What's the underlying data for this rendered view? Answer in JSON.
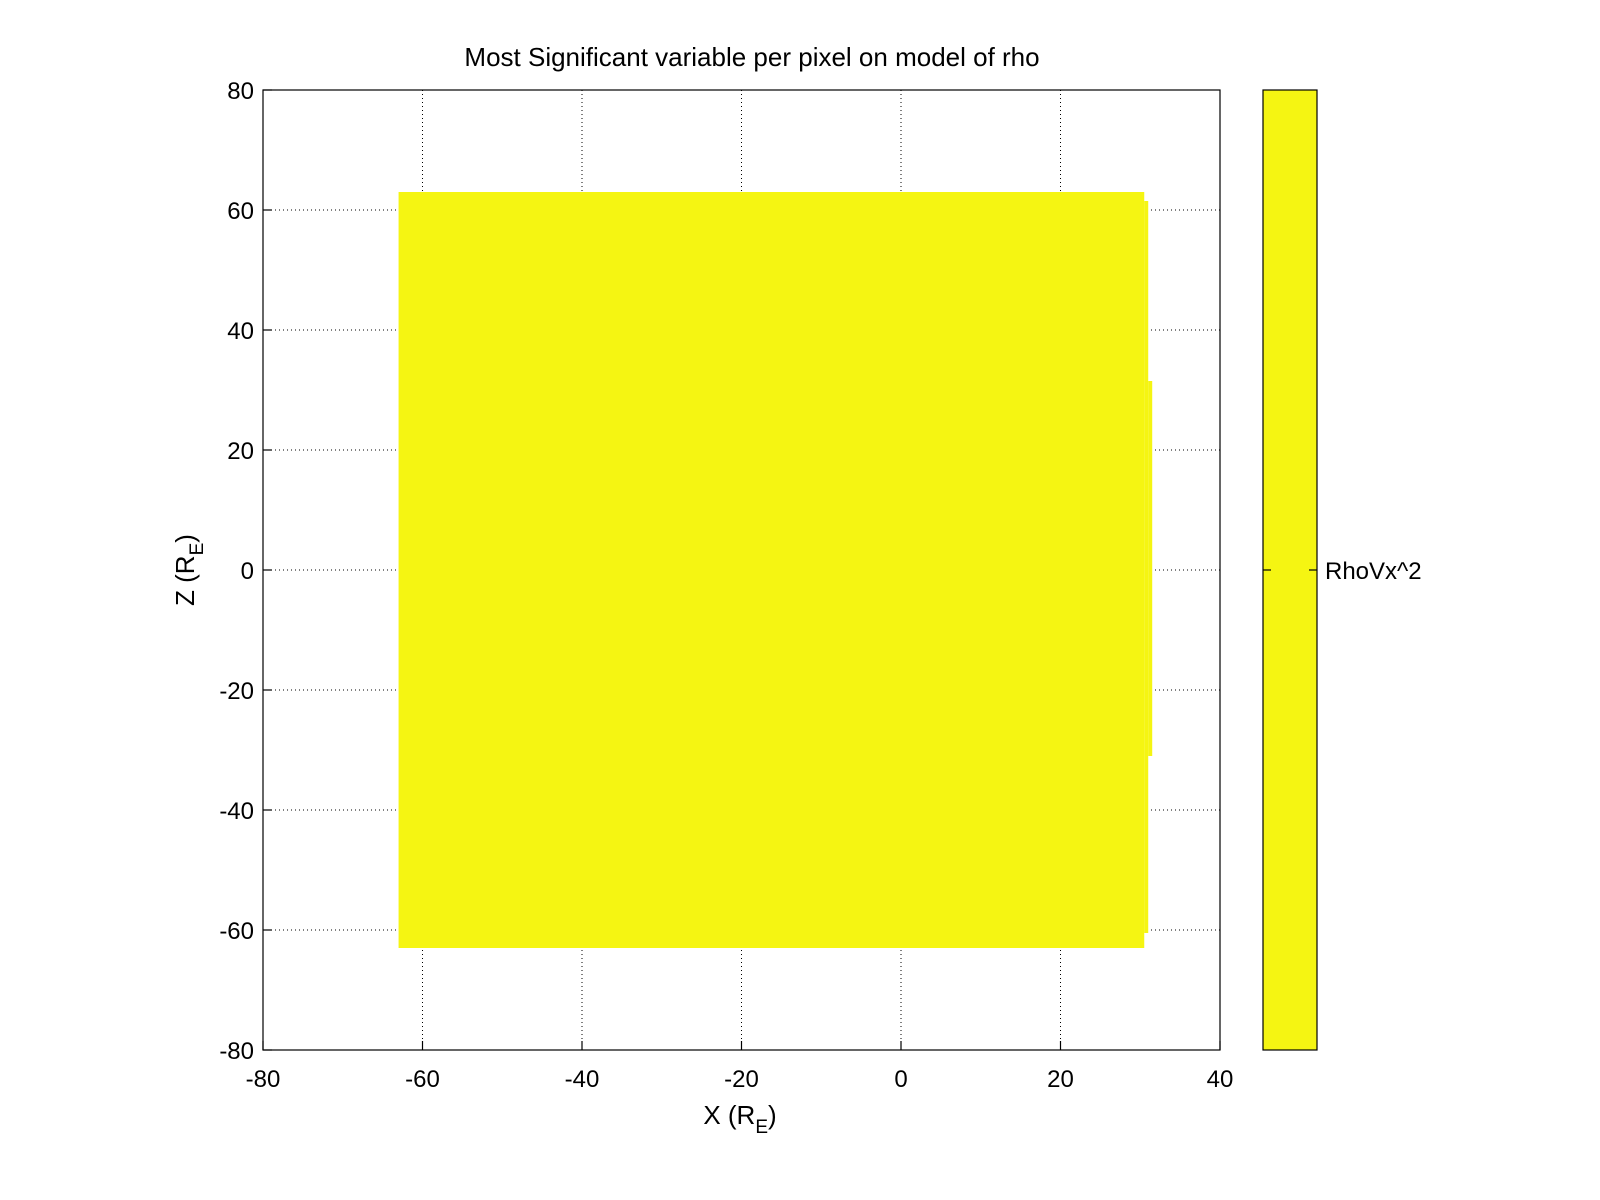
{
  "chart_data": {
    "type": "heatmap",
    "title": "Most Significant variable per pixel on model of rho",
    "xlabel": {
      "main": "X (R",
      "subscript": "E",
      "suffix": ")"
    },
    "ylabel": {
      "main": "Z (R",
      "subscript": "E",
      "suffix": ")"
    },
    "xlim": [
      -80,
      40
    ],
    "ylim": [
      -80,
      80
    ],
    "xticks": [
      -80,
      -60,
      -40,
      -20,
      0,
      20,
      40
    ],
    "yticks": [
      80,
      60,
      40,
      20,
      0,
      -20,
      -40,
      -60,
      -80
    ],
    "grid": true,
    "fill_color": "#f5f512",
    "regions": [
      {
        "x": [
          -63,
          30.5
        ],
        "y": [
          -63,
          63
        ],
        "category": "RhoVx^2"
      },
      {
        "x": [
          30.5,
          31.0
        ],
        "y": [
          -60.5,
          61.5
        ],
        "category": "RhoVx^2"
      },
      {
        "x": [
          31.0,
          31.5
        ],
        "y": [
          -31,
          31.5
        ],
        "category": "RhoVx^2"
      }
    ],
    "colorbar": {
      "categories": [
        "RhoVx^2"
      ],
      "colors": [
        "#f5f512"
      ]
    }
  }
}
